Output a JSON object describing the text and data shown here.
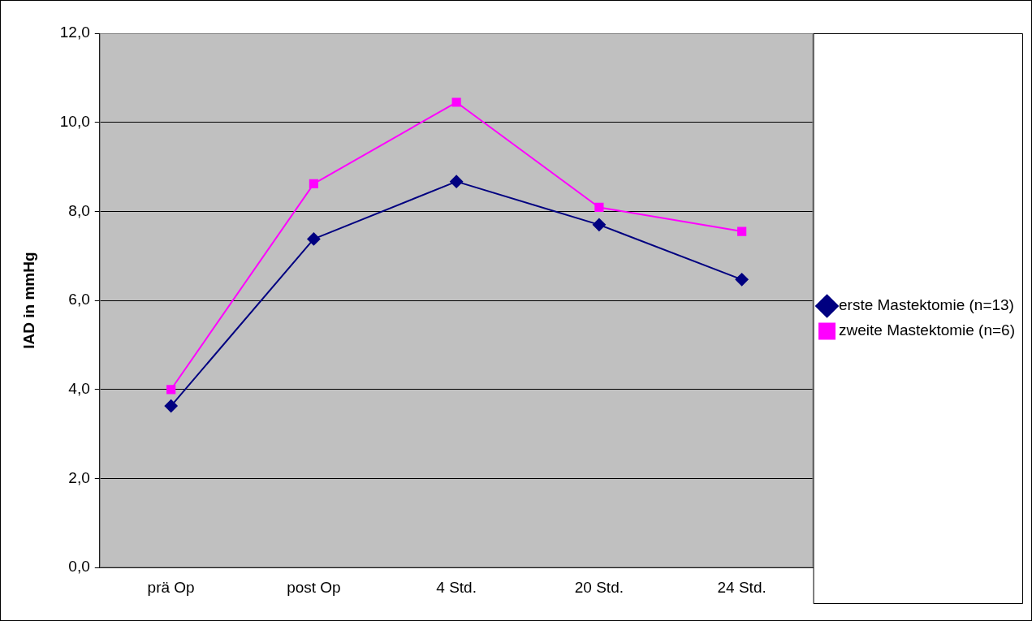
{
  "chart_data": {
    "type": "line",
    "ylabel": "IAD in mmHg",
    "categories": [
      "prä Op",
      "post Op",
      "4 Std.",
      "20 Std.",
      "24 Std."
    ],
    "series": [
      {
        "name": "erste Mastektomie (n=13)",
        "color": "#000080",
        "marker": "diamond",
        "values": [
          3.63,
          7.38,
          8.67,
          7.7,
          6.47
        ]
      },
      {
        "name": "zweite Mastektomie (n=6)",
        "color": "#ff00ff",
        "marker": "square",
        "values": [
          4.0,
          8.62,
          10.45,
          8.09,
          7.55
        ]
      }
    ],
    "ylim": [
      0,
      12
    ],
    "yticks": [
      {
        "value": 0,
        "label": "0,0"
      },
      {
        "value": 2,
        "label": "2,0"
      },
      {
        "value": 4,
        "label": "4,0"
      },
      {
        "value": 6,
        "label": "6,0"
      },
      {
        "value": 8,
        "label": "8,0"
      },
      {
        "value": 10,
        "label": "10,0"
      },
      {
        "value": 12,
        "label": "12,0"
      }
    ],
    "grid": "y",
    "legend": "right",
    "line_style": "solid"
  }
}
